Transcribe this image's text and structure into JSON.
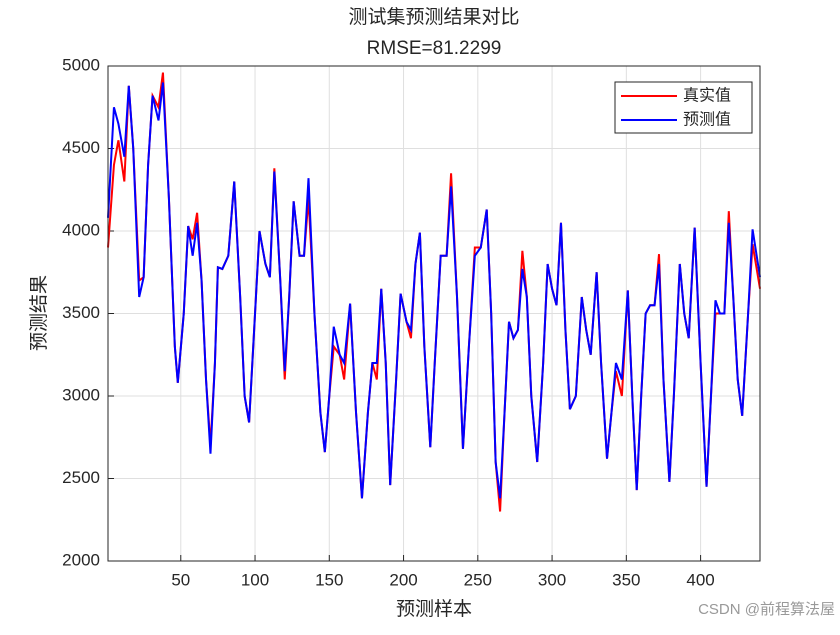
{
  "chart_data": {
    "type": "line",
    "title": "测试集预测结果对比",
    "subtitle": "RMSE=81.2299",
    "xlabel": "预测样本",
    "ylabel": "预测结果",
    "watermark": "CSDN @前程算法屋",
    "x": [
      1,
      5,
      8,
      12,
      15,
      18,
      22,
      25,
      28,
      31,
      35,
      38,
      42,
      46,
      48,
      52,
      55,
      58,
      61,
      64,
      67,
      70,
      73,
      75,
      78,
      82,
      86,
      90,
      93,
      96,
      100,
      103,
      107,
      110,
      113,
      117,
      120,
      123,
      126,
      130,
      133,
      136,
      140,
      144,
      147,
      150,
      153,
      157,
      160,
      164,
      168,
      172,
      176,
      179,
      182,
      185,
      188,
      191,
      195,
      198,
      202,
      205,
      208,
      211,
      214,
      218,
      221,
      225,
      229,
      232,
      236,
      240,
      244,
      248,
      252,
      256,
      259,
      262,
      265,
      268,
      271,
      274,
      277,
      280,
      283,
      286,
      290,
      294,
      297,
      300,
      303,
      306,
      309,
      312,
      316,
      320,
      323,
      326,
      330,
      333,
      337,
      340,
      343,
      347,
      351,
      354,
      357,
      360,
      363,
      366,
      369,
      372,
      375,
      379,
      382,
      386,
      389,
      392,
      396,
      400,
      404,
      407,
      410,
      413,
      416,
      419,
      422,
      425,
      428,
      432,
      435,
      440
    ],
    "series": [
      {
        "name": "真实值",
        "color": "#ff0000",
        "values": [
          3900,
          4400,
          4550,
          4300,
          4880,
          4500,
          3700,
          3720,
          4400,
          4820,
          4750,
          4960,
          4200,
          3300,
          3080,
          3500,
          4030,
          3950,
          4110,
          3700,
          3100,
          2700,
          3200,
          3780,
          3770,
          3850,
          4300,
          3600,
          3000,
          2840,
          3500,
          4000,
          3800,
          3720,
          4380,
          3700,
          3100,
          3600,
          4180,
          3850,
          3850,
          4200,
          3500,
          2900,
          2660,
          3000,
          3300,
          3250,
          3100,
          3560,
          2900,
          2380,
          2900,
          3200,
          3100,
          3650,
          3200,
          2460,
          3100,
          3620,
          3450,
          3350,
          3800,
          3990,
          3300,
          2690,
          3200,
          3850,
          3850,
          4350,
          3600,
          2680,
          3300,
          3900,
          3900,
          4130,
          3500,
          2600,
          2300,
          2900,
          3450,
          3350,
          3400,
          3880,
          3600,
          3000,
          2600,
          3200,
          3800,
          3650,
          3550,
          4050,
          3400,
          2920,
          3000,
          3600,
          3400,
          3250,
          3750,
          3200,
          2620,
          2900,
          3150,
          3000,
          3640,
          3000,
          2430,
          3000,
          3500,
          3550,
          3550,
          3860,
          3100,
          2480,
          3000,
          3800,
          3500,
          3350,
          4020,
          3200,
          2450,
          3000,
          3500,
          3500,
          3500,
          4120,
          3600,
          3100,
          2880,
          3500,
          3920,
          3650
        ]
      },
      {
        "name": "预测值",
        "color": "#0000ff",
        "values": [
          4080,
          4750,
          4650,
          4450,
          4880,
          4500,
          3600,
          3720,
          4400,
          4820,
          4670,
          4900,
          4200,
          3300,
          3080,
          3500,
          4030,
          3850,
          4050,
          3700,
          3100,
          2650,
          3200,
          3780,
          3770,
          3850,
          4300,
          3600,
          3000,
          2840,
          3500,
          4000,
          3800,
          3720,
          4360,
          3700,
          3150,
          3600,
          4180,
          3850,
          3850,
          4320,
          3500,
          2900,
          2660,
          3000,
          3420,
          3250,
          3200,
          3560,
          2900,
          2380,
          2900,
          3200,
          3200,
          3650,
          3200,
          2460,
          3100,
          3620,
          3450,
          3400,
          3800,
          3990,
          3300,
          2690,
          3200,
          3850,
          3850,
          4270,
          3600,
          2680,
          3300,
          3850,
          3900,
          4130,
          3500,
          2600,
          2380,
          2900,
          3450,
          3350,
          3400,
          3770,
          3600,
          3000,
          2600,
          3200,
          3800,
          3650,
          3550,
          4050,
          3400,
          2920,
          3000,
          3600,
          3400,
          3250,
          3750,
          3200,
          2620,
          2900,
          3200,
          3100,
          3640,
          3000,
          2430,
          3000,
          3500,
          3550,
          3550,
          3800,
          3100,
          2480,
          3000,
          3800,
          3500,
          3350,
          4020,
          3200,
          2450,
          3000,
          3580,
          3500,
          3500,
          4050,
          3600,
          3100,
          2880,
          3500,
          4010,
          3720
        ]
      }
    ],
    "xlim": [
      1,
      440
    ],
    "xticks": [
      50,
      100,
      150,
      200,
      250,
      300,
      350,
      400
    ],
    "ylim": [
      2000,
      5000
    ],
    "yticks": [
      2000,
      2500,
      3000,
      3500,
      4000,
      4500,
      5000
    ],
    "grid": true,
    "legend": "upper right"
  }
}
